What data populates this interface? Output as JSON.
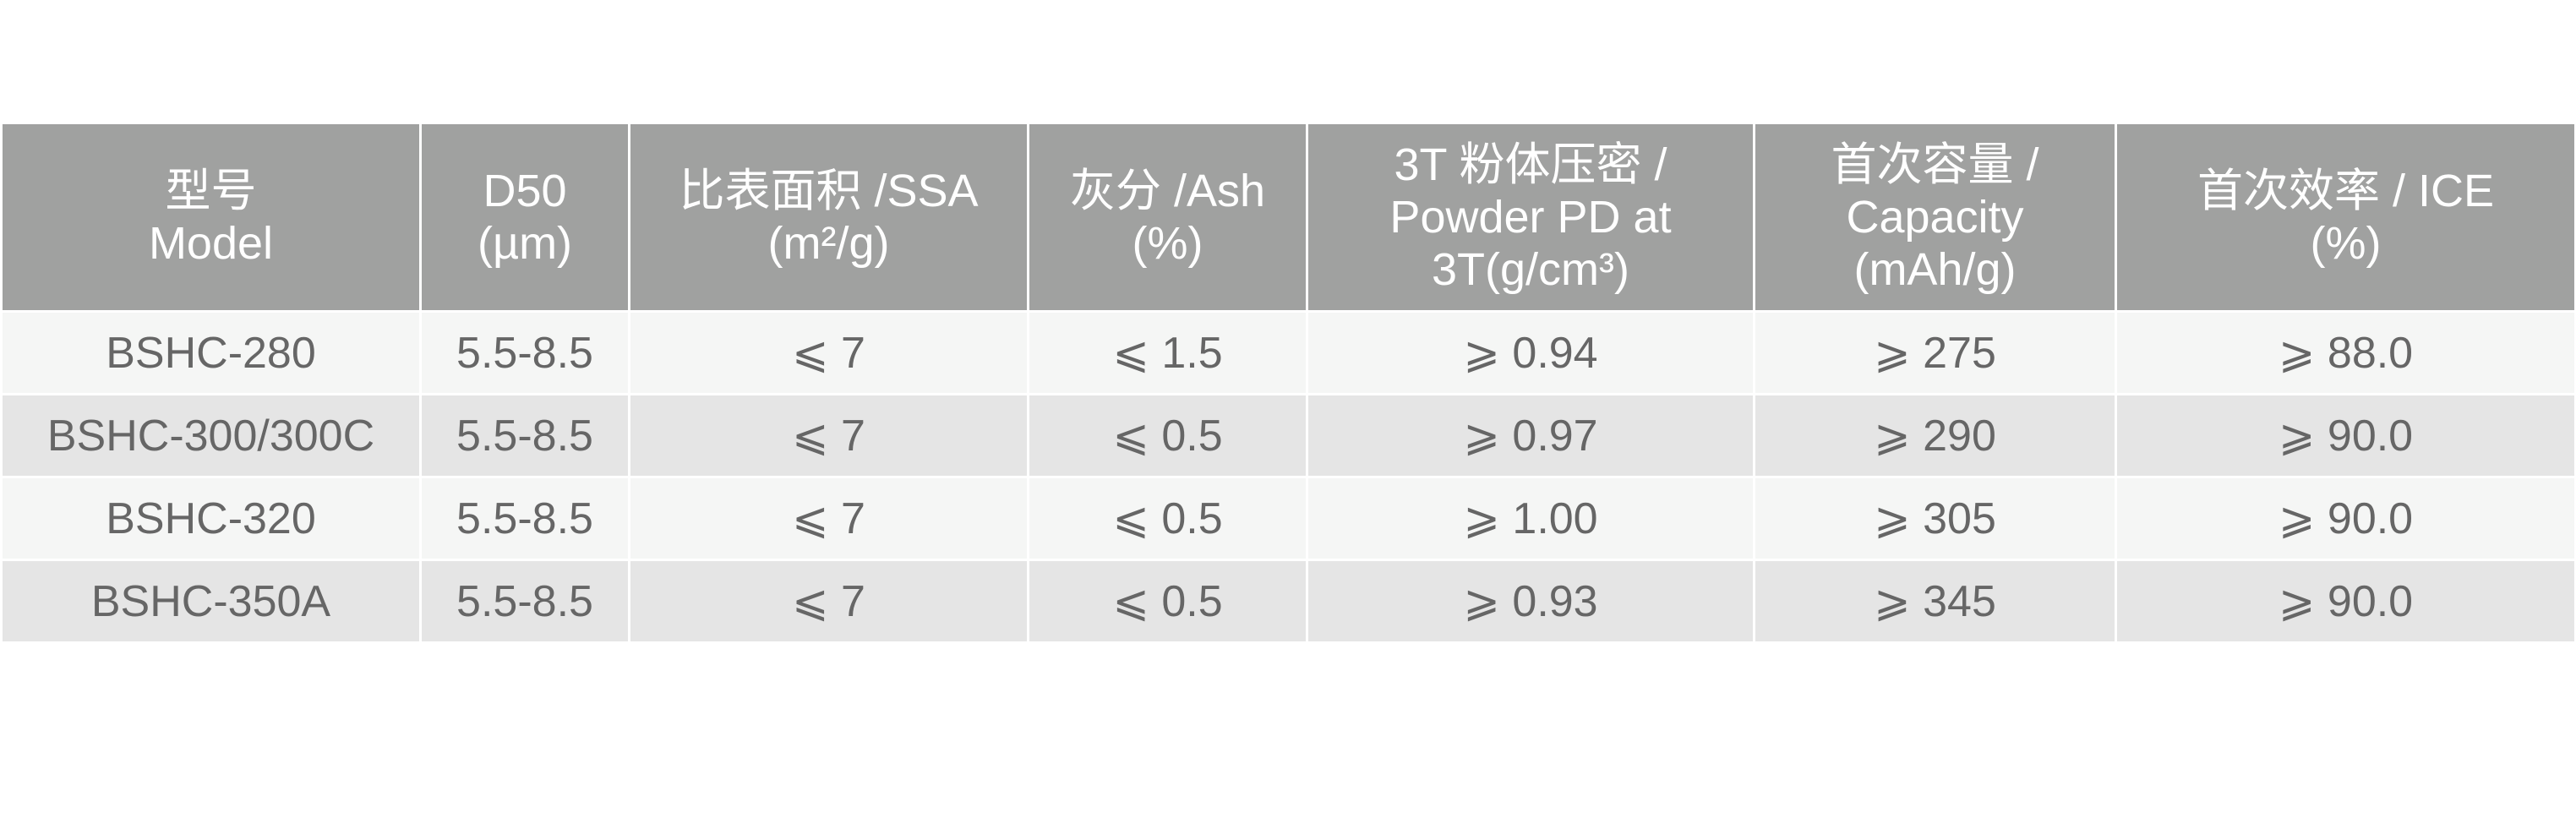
{
  "columns": [
    {
      "lines": [
        "型号",
        "Model"
      ]
    },
    {
      "lines": [
        "D50",
        "(µm)"
      ]
    },
    {
      "lines": [
        "比表面积 /SSA",
        "(m²/g)"
      ]
    },
    {
      "lines": [
        "灰分 /Ash",
        "(%)"
      ]
    },
    {
      "lines": [
        "3T 粉体压密 /",
        "Powder PD at",
        "3T(g/cm³)"
      ]
    },
    {
      "lines": [
        "首次容量 /",
        "Capacity",
        "(mAh/g)"
      ]
    },
    {
      "lines": [
        "首次效率 / ICE",
        "(%)"
      ]
    }
  ],
  "rows": [
    [
      "BSHC-280",
      "5.5-8.5",
      "⩽ 7",
      "⩽ 1.5",
      "⩾ 0.94",
      "⩾ 275",
      "⩾ 88.0"
    ],
    [
      "BSHC-300/300C",
      "5.5-8.5",
      "⩽ 7",
      "⩽ 0.5",
      "⩾ 0.97",
      "⩾ 290",
      "⩾ 90.0"
    ],
    [
      "BSHC-320",
      "5.5-8.5",
      "⩽ 7",
      "⩽ 0.5",
      "⩾ 1.00",
      "⩾ 305",
      "⩾ 90.0"
    ],
    [
      "BSHC-350A",
      "5.5-8.5",
      "⩽ 7",
      "⩽ 0.5",
      "⩾ 0.93",
      "⩾ 345",
      "⩾ 90.0"
    ]
  ],
  "colors": {
    "header_bg": "#a0a1a0",
    "row_light": "#f5f6f5",
    "row_dark": "#e5e5e5",
    "text": "#666666"
  }
}
